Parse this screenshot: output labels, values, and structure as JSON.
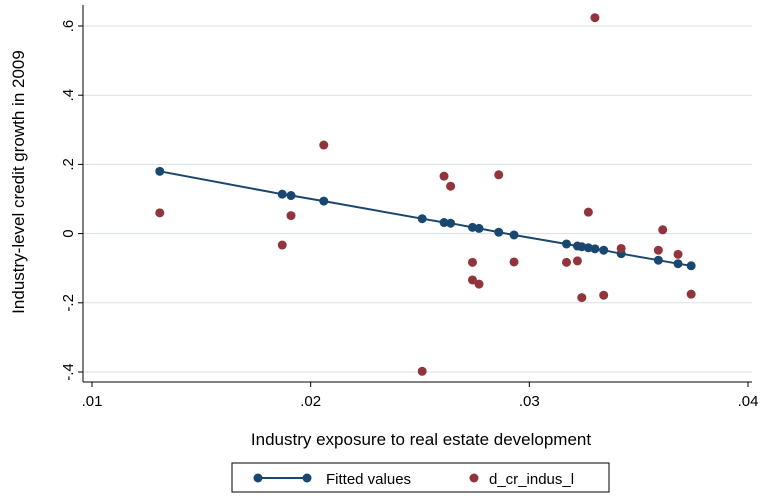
{
  "chart_data": {
    "type": "scatter",
    "title": "",
    "xlabel": "Industry exposure to real estate development",
    "ylabel": "Industry-level credit growth in 2009",
    "xlim": [
      0.01,
      0.04
    ],
    "ylim": [
      -0.4,
      0.6
    ],
    "x_ticks": [
      0.01,
      0.02,
      0.03,
      0.04
    ],
    "x_tick_labels": [
      ".01",
      ".02",
      ".03",
      ".04"
    ],
    "y_ticks": [
      -0.4,
      -0.2,
      0,
      0.2,
      0.4,
      0.6
    ],
    "y_tick_labels": [
      "-.4",
      "-.2",
      "0",
      ".2",
      ".4",
      ".6"
    ],
    "grid": "horizontal",
    "legend_position": "bottom",
    "series": [
      {
        "name": "Fitted values",
        "kind": "line",
        "color": "#1a476f",
        "marker_color": "#1a476f",
        "points": [
          [
            0.0131,
            0.18
          ],
          [
            0.0187,
            0.114
          ],
          [
            0.0191,
            0.11
          ],
          [
            0.0206,
            0.094
          ],
          [
            0.0251,
            0.043
          ],
          [
            0.0261,
            0.032
          ],
          [
            0.0264,
            0.03
          ],
          [
            0.0274,
            0.018
          ],
          [
            0.0277,
            0.015
          ],
          [
            0.0286,
            0.004
          ],
          [
            0.0293,
            -0.004
          ],
          [
            0.0317,
            -0.03
          ],
          [
            0.0322,
            -0.036
          ],
          [
            0.0324,
            -0.038
          ],
          [
            0.0327,
            -0.041
          ],
          [
            0.033,
            -0.044
          ],
          [
            0.0334,
            -0.048
          ],
          [
            0.0342,
            -0.058
          ],
          [
            0.0359,
            -0.077
          ],
          [
            0.0368,
            -0.087
          ],
          [
            0.0374,
            -0.093
          ]
        ]
      },
      {
        "name": "d_cr_indus_l",
        "kind": "scatter",
        "color": "#90353b",
        "points": [
          [
            0.0131,
            0.06
          ],
          [
            0.0187,
            -0.033
          ],
          [
            0.0191,
            0.052
          ],
          [
            0.0206,
            0.256
          ],
          [
            0.0251,
            -0.398
          ],
          [
            0.0261,
            0.166
          ],
          [
            0.0264,
            0.137
          ],
          [
            0.0274,
            -0.083
          ],
          [
            0.0274,
            -0.134
          ],
          [
            0.0277,
            -0.146
          ],
          [
            0.0286,
            0.17
          ],
          [
            0.0293,
            -0.082
          ],
          [
            0.0317,
            -0.083
          ],
          [
            0.0322,
            -0.079
          ],
          [
            0.0324,
            -0.185
          ],
          [
            0.0327,
            0.062
          ],
          [
            0.033,
            0.624
          ],
          [
            0.0334,
            -0.178
          ],
          [
            0.0342,
            -0.043
          ],
          [
            0.0359,
            -0.048
          ],
          [
            0.0361,
            0.011
          ],
          [
            0.0368,
            -0.06
          ],
          [
            0.0374,
            -0.175
          ]
        ]
      }
    ]
  },
  "legend": {
    "items": [
      {
        "label": "Fitted values"
      },
      {
        "label": "d_cr_indus_l"
      }
    ]
  }
}
